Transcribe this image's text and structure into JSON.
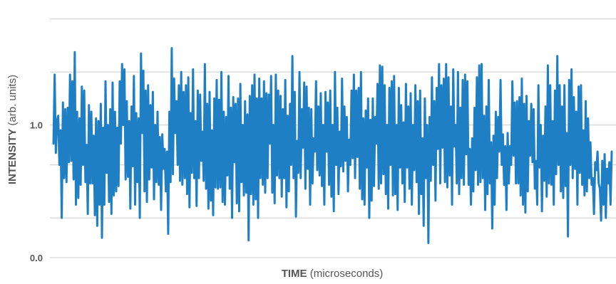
{
  "chart_data": {
    "type": "line",
    "xlabel_main": "TIME",
    "xlabel_unit": "(microseconds)",
    "ylabel_main": "INTENSITY",
    "ylabel_unit": "(arb. units)",
    "ylim": [
      0.0,
      1.9
    ],
    "y_ticks": [
      0.0,
      1.0
    ],
    "y_tick_labels": [
      "0.0",
      "1.0"
    ],
    "gridlines_y": [
      0.0,
      0.3,
      0.7,
      1.0,
      1.4,
      1.8
    ],
    "grid": true,
    "colors": {
      "series": "#1f7fc4",
      "grid": "#cccccc",
      "text": "#555555"
    },
    "series": [
      {
        "values": [
          0.86,
          1.38,
          0.79,
          1.03,
          1.07,
          0.7,
          0.96,
          0.3,
          1.17,
          0.6,
          1.12,
          0.57,
          1.13,
          0.72,
          1.38,
          0.73,
          1.33,
          0.59,
          1.55,
          0.4,
          1.1,
          0.45,
          1.05,
          0.55,
          1.29,
          0.7,
          1.26,
          0.57,
          0.85,
          0.33,
          1.15,
          0.56,
          1.1,
          0.56,
          0.92,
          0.32,
          1.05,
          0.24,
          1.03,
          0.4,
          1.16,
          0.15,
          0.98,
          0.4,
          1.33,
          0.64,
          1.0,
          0.42,
          1.12,
          0.33,
          1.32,
          0.47,
          1.1,
          0.5,
          0.98,
          0.54,
          1.33,
          0.86,
          1.46,
          1.0,
          1.42,
          0.59,
          1.18,
          0.61,
          1.03,
          0.37,
          1.14,
          0.69,
          1.37,
          0.4,
          1.09,
          0.57,
          1.05,
          0.3,
          1.54,
          0.94,
          1.41,
          0.5,
          1.26,
          0.42,
          1.3,
          0.59,
          1.15,
          0.68,
          1.25,
          0.44,
          1.0,
          0.57,
          1.1,
          0.55,
          0.91,
          0.36,
          0.93,
          0.67,
          0.82,
          0.5,
          0.8,
          0.18,
          1.1,
          0.57,
          1.58,
          0.63,
          1.35,
          0.94,
          1.18,
          0.7,
          1.3,
          0.58,
          1.4,
          0.55,
          1.25,
          0.6,
          1.3,
          0.48,
          1.36,
          0.38,
          1.09,
          0.64,
          1.42,
          0.6,
          1.03,
          0.39,
          1.26,
          0.6,
          1.23,
          0.73,
          0.95,
          0.58,
          1.46,
          0.52,
          1.16,
          0.37,
          1.25,
          0.43,
          0.96,
          0.32,
          1.2,
          0.53,
          1.34,
          0.52,
          1.19,
          0.53,
          1.4,
          0.42,
          1.1,
          0.4,
          1.06,
          0.62,
          1.37,
          0.52,
          1.13,
          0.3,
          1.21,
          0.72,
          1.16,
          0.41,
          1.2,
          0.35,
          1.31,
          0.57,
          1.0,
          0.47,
          1.18,
          0.49,
          1.08,
          0.13,
          1.22,
          0.48,
          1.3,
          0.4,
          1.38,
          0.44,
          1.2,
          0.3,
          1.35,
          0.6,
          1.2,
          0.55,
          1.33,
          0.49,
          1.24,
          0.6,
          1.23,
          0.86,
          1.37,
          0.49,
          1.0,
          0.41,
          1.38,
          0.62,
          1.26,
          0.6,
          1.22,
          0.46,
          1.12,
          0.6,
          1.34,
          0.38,
          1.07,
          0.5,
          1.16,
          0.7,
          1.52,
          0.6,
          1.25,
          0.31,
          0.88,
          0.64,
          1.4,
          0.6,
          1.12,
          0.83,
          1.32,
          0.52,
          1.29,
          0.67,
          1.13,
          0.4,
          1.12,
          0.56,
          0.9,
          0.8,
          1.33,
          0.66,
          1.14,
          0.62,
          1.24,
          0.54,
          1.0,
          0.4,
          1.25,
          0.8,
          1.17,
          0.55,
          1.26,
          0.46,
          1.0,
          0.35,
          1.4,
          0.7,
          1.13,
          0.48,
          0.95,
          0.69,
          1.35,
          0.65,
          1.14,
          0.73,
          1.06,
          0.5,
          0.89,
          0.7,
          1.26,
          0.75,
          1.38,
          0.6,
          1.26,
          0.76,
          1.28,
          0.52,
          1.4,
          0.44,
          1.05,
          0.4,
          1.11,
          0.68,
          1.2,
          0.3,
          1.04,
          0.43,
          1.2,
          0.54,
          1.06,
          0.86,
          1.31,
          0.52,
          1.45,
          0.56,
          1.44,
          0.63,
          1.3,
          0.48,
          1.0,
          0.37,
          1.28,
          0.7,
          1.33,
          0.47,
          1.37,
          0.48,
          1.0,
          0.36,
          1.28,
          0.68,
          1.15,
          0.56,
          1.02,
          0.42,
          1.31,
          0.68,
          1.14,
          0.52,
          1.24,
          0.4,
          1.0,
          0.66,
          1.3,
          0.57,
          1.18,
          0.33,
          1.26,
          0.48,
          0.9,
          0.24,
          1.2,
          0.6,
          1.0,
          0.11,
          1.06,
          0.58,
          1.36,
          0.7,
          1.18,
          0.43,
          1.28,
          0.82,
          1.46,
          0.56,
          1.3,
          0.83,
          1.35,
          0.57,
          1.46,
          0.53,
          1.36,
          0.62,
          1.14,
          0.4,
          1.42,
          0.84,
          1.0,
          0.56,
          1.4,
          0.48,
          1.13,
          0.6,
          1.34,
          0.55,
          1.38,
          0.78,
          1.33,
          0.55,
          0.82,
          0.4,
          0.9,
          0.5,
          1.13,
          0.66,
          1.36,
          0.55,
          1.45,
          0.57,
          1.46,
          0.6,
          1.07,
          0.36,
          1.14,
          0.48,
          1.34,
          0.56,
          0.87,
          0.22,
          0.92,
          0.4,
          1.1,
          0.6,
          1.06,
          0.8,
          1.34,
          0.7,
          0.93,
          0.55,
          0.84,
          0.36,
          0.94,
          0.56,
          0.84,
          0.7,
          1.33,
          0.77,
          1.17,
          0.56,
          1.18,
          0.56,
          1.21,
          0.47,
          1.35,
          0.4,
          1.16,
          0.34,
          1.22,
          0.5,
          1.03,
          0.77,
          1.16,
          0.72,
          1.12,
          0.52,
          0.73,
          0.4,
          1.3,
          0.68,
          1.0,
          0.35,
          0.92,
          0.58,
          1.14,
          0.46,
          1.45,
          0.56,
          1.3,
          0.55,
          1.03,
          0.4,
          1.26,
          0.63,
          1.52,
          0.7,
          1.3,
          0.5,
          1.14,
          0.45,
          1.3,
          0.54,
          0.94,
          0.16,
          1.34,
          0.7,
          1.42,
          0.6,
          1.21,
          0.67,
          1.1,
          0.4,
          1.29,
          0.64,
          1.3,
          0.55,
          0.96,
          0.47,
          1.18,
          0.5,
          1.05,
          0.6,
          0.87,
          0.55,
          0.6,
          0.33,
          0.72,
          0.66,
          0.8,
          0.56,
          0.52,
          0.28,
          0.73,
          0.4,
          0.78,
          0.3,
          0.67,
          0.56,
          0.72,
          0.4,
          0.8
        ]
      }
    ]
  }
}
